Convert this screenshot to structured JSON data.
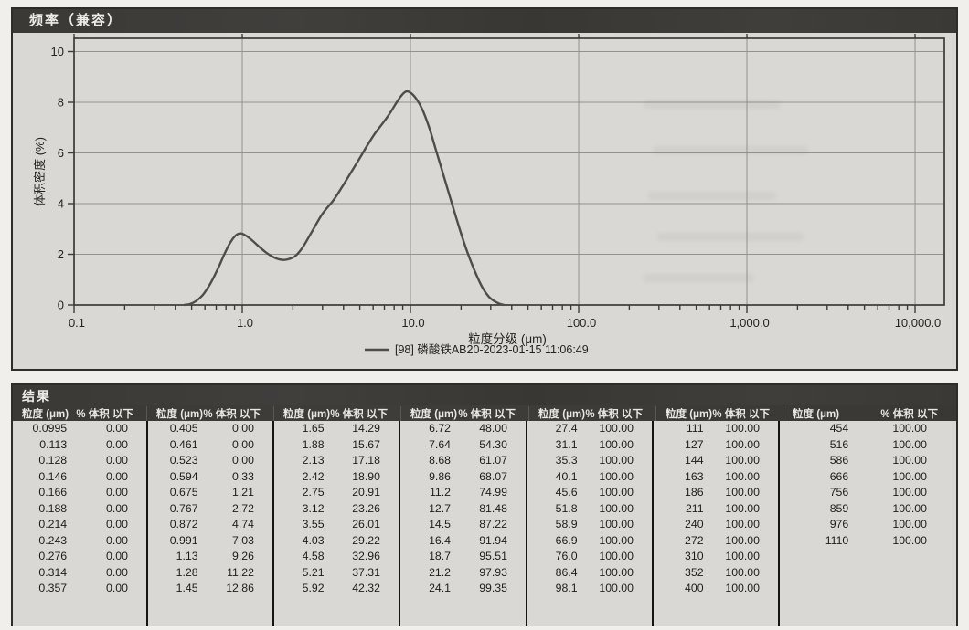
{
  "chart_panel": {
    "title": "频率（兼容）"
  },
  "chart_data": {
    "type": "line",
    "title": "频率（兼容）",
    "xlabel": "粒度分级 (μm)",
    "ylabel": "体积密度 (%)",
    "x_scale": "log",
    "xlim": [
      0.1,
      10000
    ],
    "ylim": [
      0,
      10
    ],
    "grid": true,
    "legend_position": "bottom",
    "x_ticks": [
      {
        "value": 0.1,
        "label": "0.1"
      },
      {
        "value": 1,
        "label": "1.0"
      },
      {
        "value": 10,
        "label": "10.0"
      },
      {
        "value": 100,
        "label": "100.0"
      },
      {
        "value": 1000,
        "label": "1,000.0"
      },
      {
        "value": 10000,
        "label": "10,000.0"
      }
    ],
    "y_ticks": [
      0,
      2,
      4,
      6,
      8,
      10
    ],
    "series": [
      {
        "name": "[98] 磷酸铁AB20-2023-01-15 11:06:49",
        "color": "#4e4d49",
        "points": [
          [
            0.45,
            0
          ],
          [
            0.49,
            0.04
          ],
          [
            0.53,
            0.15
          ],
          [
            0.58,
            0.38
          ],
          [
            0.63,
            0.72
          ],
          [
            0.68,
            1.12
          ],
          [
            0.73,
            1.55
          ],
          [
            0.78,
            1.98
          ],
          [
            0.83,
            2.35
          ],
          [
            0.88,
            2.62
          ],
          [
            0.93,
            2.78
          ],
          [
            0.98,
            2.82
          ],
          [
            1.05,
            2.74
          ],
          [
            1.14,
            2.56
          ],
          [
            1.25,
            2.32
          ],
          [
            1.38,
            2.08
          ],
          [
            1.52,
            1.9
          ],
          [
            1.66,
            1.8
          ],
          [
            1.8,
            1.78
          ],
          [
            1.95,
            1.84
          ],
          [
            2.1,
            1.97
          ],
          [
            2.3,
            2.3
          ],
          [
            2.6,
            2.9
          ],
          [
            3.0,
            3.6
          ],
          [
            3.5,
            4.15
          ],
          [
            4.0,
            4.75
          ],
          [
            4.5,
            5.3
          ],
          [
            5.0,
            5.8
          ],
          [
            5.6,
            6.35
          ],
          [
            6.2,
            6.8
          ],
          [
            6.9,
            7.2
          ],
          [
            7.6,
            7.6
          ],
          [
            8.2,
            7.95
          ],
          [
            8.8,
            8.25
          ],
          [
            9.4,
            8.42
          ],
          [
            10.0,
            8.38
          ],
          [
            10.8,
            8.15
          ],
          [
            11.8,
            7.7
          ],
          [
            13.0,
            6.95
          ],
          [
            14.2,
            6.1
          ],
          [
            15.6,
            5.2
          ],
          [
            17.1,
            4.3
          ],
          [
            18.8,
            3.4
          ],
          [
            20.6,
            2.55
          ],
          [
            22.6,
            1.8
          ],
          [
            24.8,
            1.15
          ],
          [
            27.0,
            0.65
          ],
          [
            29.2,
            0.33
          ],
          [
            31.5,
            0.15
          ],
          [
            33.8,
            0.05
          ],
          [
            36.0,
            0
          ]
        ]
      }
    ]
  },
  "results_table": {
    "section_title": "结果",
    "size_header": "粒度 (μm)",
    "pct_header": "% 体积 以下",
    "groups": [
      [
        [
          "0.0995",
          "0.00"
        ],
        [
          "0.113",
          "0.00"
        ],
        [
          "0.128",
          "0.00"
        ],
        [
          "0.146",
          "0.00"
        ],
        [
          "0.166",
          "0.00"
        ],
        [
          "0.188",
          "0.00"
        ],
        [
          "0.214",
          "0.00"
        ],
        [
          "0.243",
          "0.00"
        ],
        [
          "0.276",
          "0.00"
        ],
        [
          "0.314",
          "0.00"
        ],
        [
          "0.357",
          "0.00"
        ]
      ],
      [
        [
          "0.405",
          "0.00"
        ],
        [
          "0.461",
          "0.00"
        ],
        [
          "0.523",
          "0.00"
        ],
        [
          "0.594",
          "0.33"
        ],
        [
          "0.675",
          "1.21"
        ],
        [
          "0.767",
          "2.72"
        ],
        [
          "0.872",
          "4.74"
        ],
        [
          "0.991",
          "7.03"
        ],
        [
          "1.13",
          "9.26"
        ],
        [
          "1.28",
          "11.22"
        ],
        [
          "1.45",
          "12.86"
        ]
      ],
      [
        [
          "1.65",
          "14.29"
        ],
        [
          "1.88",
          "15.67"
        ],
        [
          "2.13",
          "17.18"
        ],
        [
          "2.42",
          "18.90"
        ],
        [
          "2.75",
          "20.91"
        ],
        [
          "3.12",
          "23.26"
        ],
        [
          "3.55",
          "26.01"
        ],
        [
          "4.03",
          "29.22"
        ],
        [
          "4.58",
          "32.96"
        ],
        [
          "5.21",
          "37.31"
        ],
        [
          "5.92",
          "42.32"
        ]
      ],
      [
        [
          "6.72",
          "48.00"
        ],
        [
          "7.64",
          "54.30"
        ],
        [
          "8.68",
          "61.07"
        ],
        [
          "9.86",
          "68.07"
        ],
        [
          "11.2",
          "74.99"
        ],
        [
          "12.7",
          "81.48"
        ],
        [
          "14.5",
          "87.22"
        ],
        [
          "16.4",
          "91.94"
        ],
        [
          "18.7",
          "95.51"
        ],
        [
          "21.2",
          "97.93"
        ],
        [
          "24.1",
          "99.35"
        ]
      ],
      [
        [
          "27.4",
          "100.00"
        ],
        [
          "31.1",
          "100.00"
        ],
        [
          "35.3",
          "100.00"
        ],
        [
          "40.1",
          "100.00"
        ],
        [
          "45.6",
          "100.00"
        ],
        [
          "51.8",
          "100.00"
        ],
        [
          "58.9",
          "100.00"
        ],
        [
          "66.9",
          "100.00"
        ],
        [
          "76.0",
          "100.00"
        ],
        [
          "86.4",
          "100.00"
        ],
        [
          "98.1",
          "100.00"
        ]
      ],
      [
        [
          "111",
          "100.00"
        ],
        [
          "127",
          "100.00"
        ],
        [
          "144",
          "100.00"
        ],
        [
          "163",
          "100.00"
        ],
        [
          "186",
          "100.00"
        ],
        [
          "211",
          "100.00"
        ],
        [
          "240",
          "100.00"
        ],
        [
          "272",
          "100.00"
        ],
        [
          "310",
          "100.00"
        ],
        [
          "352",
          "100.00"
        ],
        [
          "400",
          "100.00"
        ]
      ],
      [
        [
          "454",
          "100.00"
        ],
        [
          "516",
          "100.00"
        ],
        [
          "586",
          "100.00"
        ],
        [
          "666",
          "100.00"
        ],
        [
          "756",
          "100.00"
        ],
        [
          "859",
          "100.00"
        ],
        [
          "976",
          "100.00"
        ],
        [
          "1110",
          "100.00"
        ]
      ]
    ]
  }
}
